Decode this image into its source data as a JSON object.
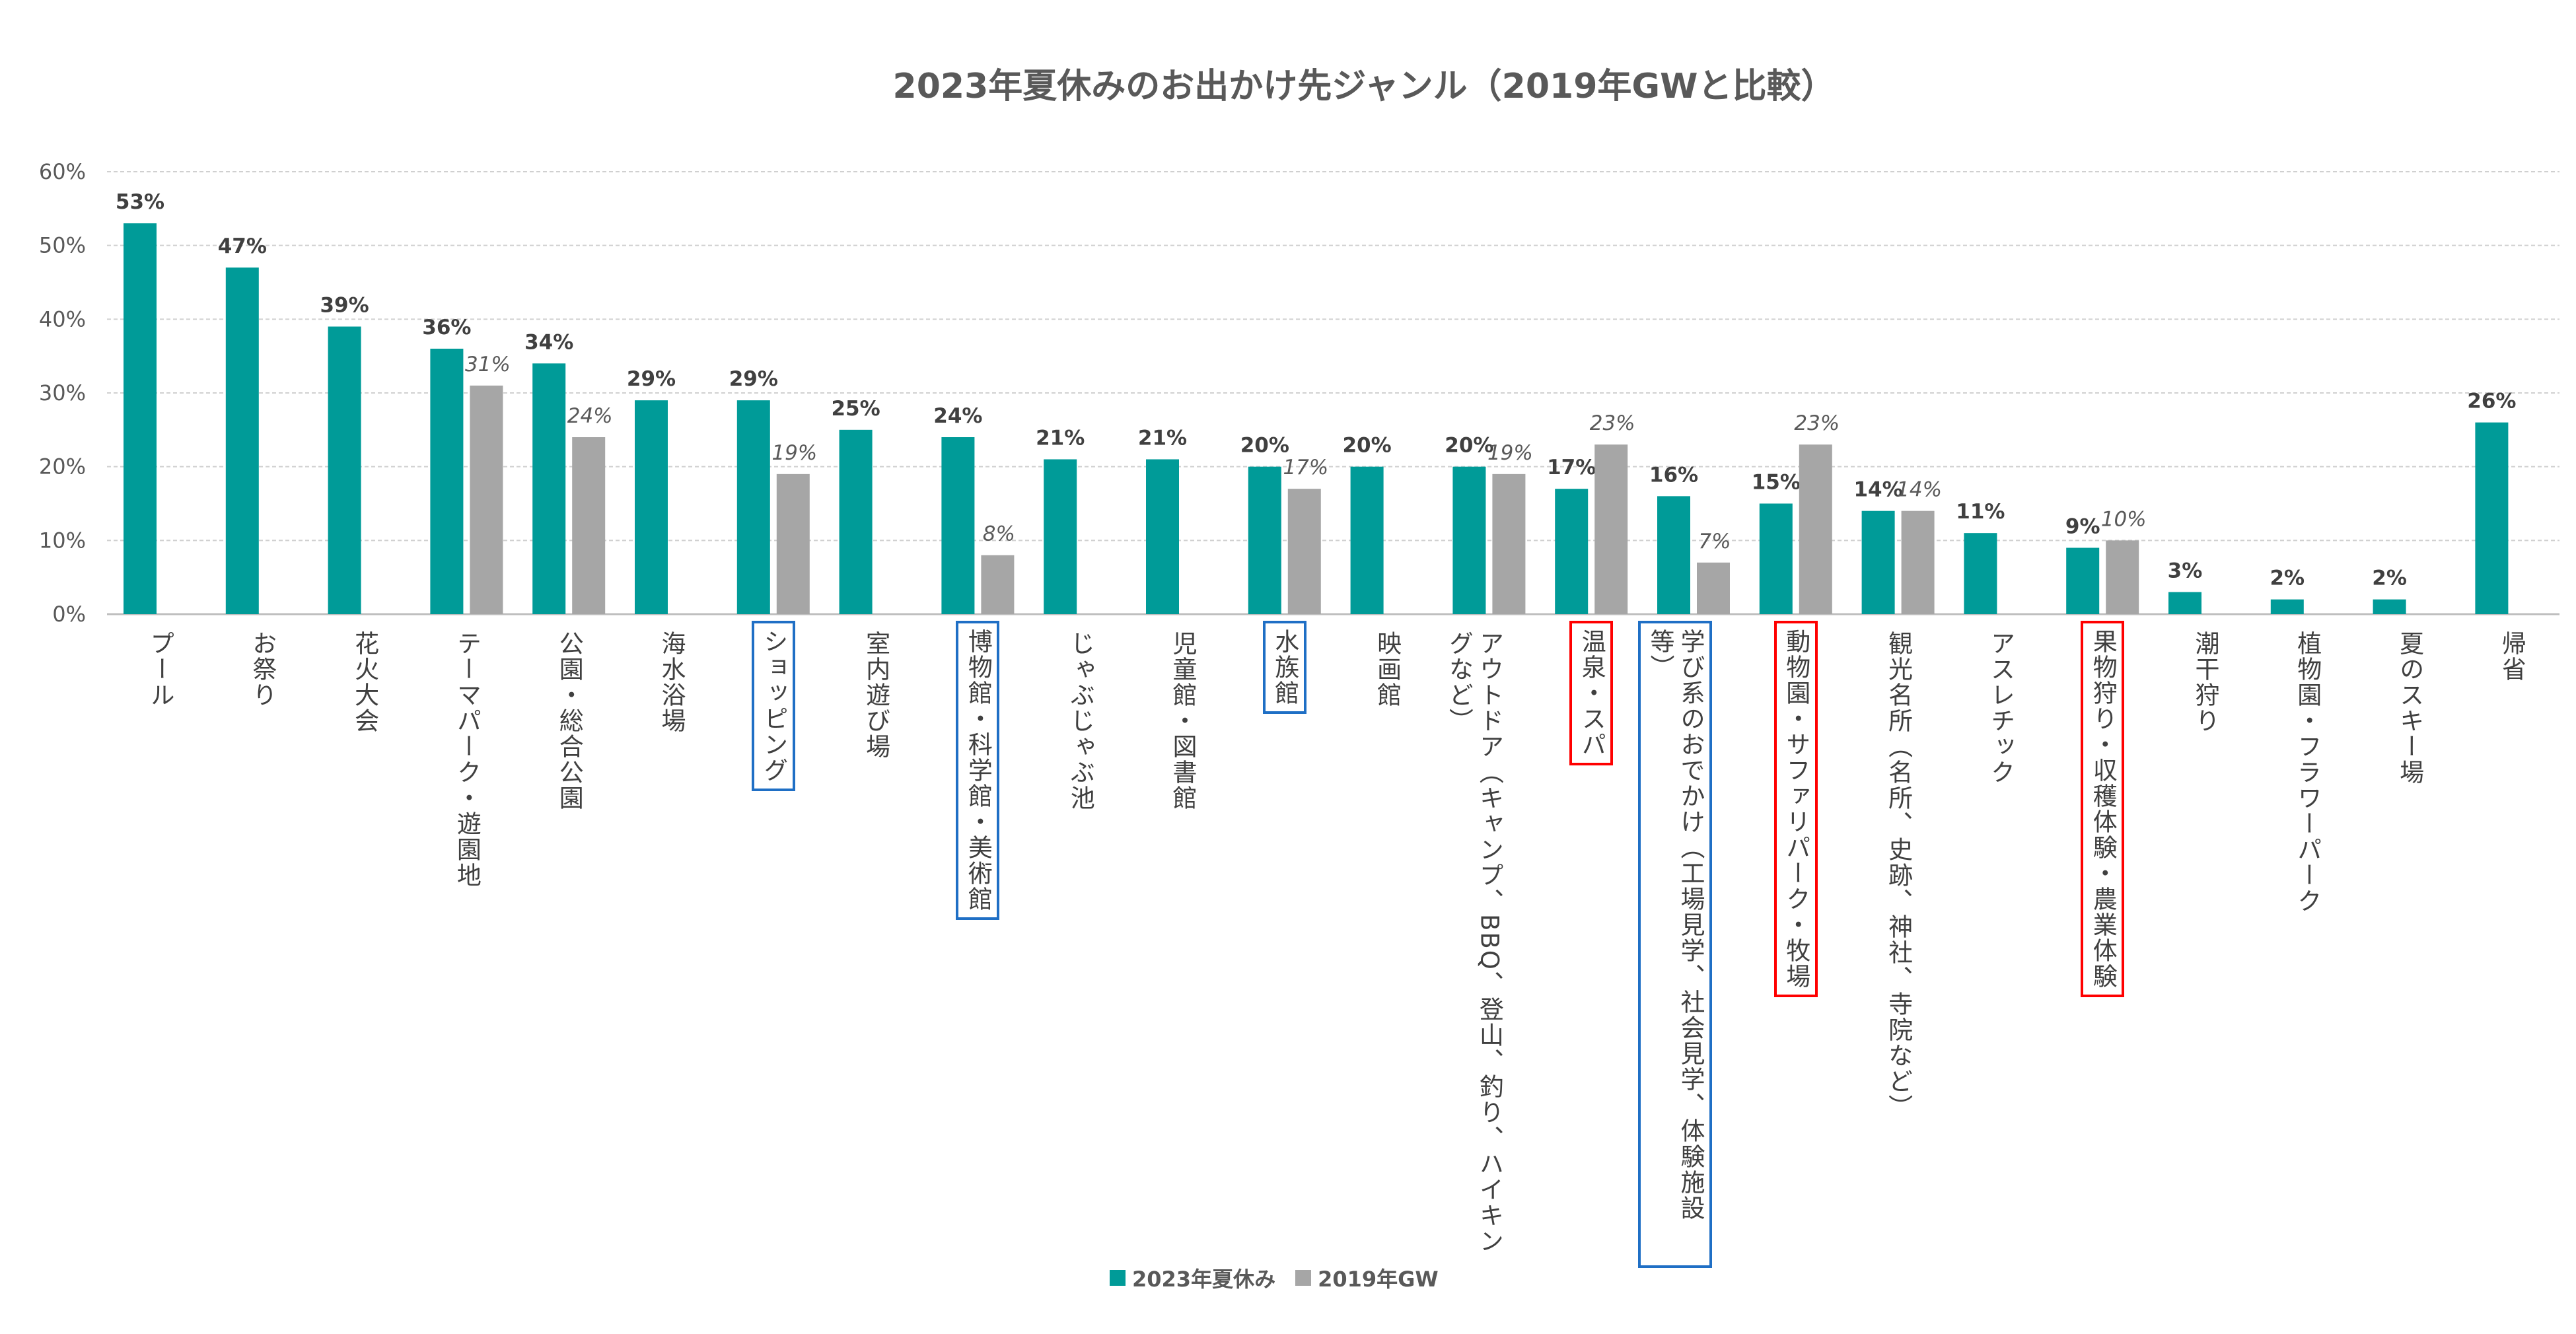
{
  "chart_data": {
    "type": "bar",
    "title": "2023年夏休みのお出かけ先ジャンル（2019年GWと比較）",
    "categories": [
      "プール",
      "お祭り",
      "花火大会",
      "テーマパーク・遊園地",
      "公園・総合公園",
      "海水浴場",
      "ショッピング",
      "室内遊び場",
      "博物館・科学館・美術館",
      "じゃぶじゃぶ池",
      "児童館・図書館",
      "水族館",
      "映画館",
      "アウトドア（キャンプ、BBQ、登山、釣り、ハイキングなど）",
      "温泉・スパ",
      "学び系のおでかけ（工場見学、社会見学、体験施設等）",
      "動物園・サファリパーク・牧場",
      "観光名所（名所、史跡、神社、寺院など）",
      "アスレチック",
      "果物狩り・収穫体験・農業体験",
      "潮干狩り",
      "植物園・フラワーパーク",
      "夏のスキー場",
      "帰省"
    ],
    "series": [
      {
        "name": "2023年夏休み",
        "color": "#009B98",
        "values": [
          53,
          47,
          39,
          36,
          34,
          29,
          29,
          25,
          24,
          21,
          21,
          20,
          20,
          20,
          17,
          16,
          15,
          14,
          11,
          9,
          3,
          2,
          2,
          26
        ]
      },
      {
        "name": "2019年GW",
        "color": "#A6A6A6",
        "values": [
          null,
          null,
          null,
          31,
          24,
          null,
          19,
          null,
          8,
          null,
          null,
          17,
          null,
          19,
          23,
          7,
          23,
          14,
          null,
          10,
          null,
          null,
          null,
          null
        ]
      }
    ],
    "ylim": [
      0,
      60
    ],
    "yticks": [
      "0%",
      "10%",
      "20%",
      "30%",
      "40%",
      "50%",
      "60%"
    ],
    "grid": true,
    "legend_position": "bottom",
    "highlight_boxes": {
      "blue": [
        "ショッピング",
        "博物館・科学館・美術館",
        "水族館",
        "学び系のおでかけ（工場見学、社会見学、体験施設等）"
      ],
      "red": [
        "温泉・スパ",
        "動物園・サファリパーク・牧場",
        "果物狩り・収穫体験・農業体験"
      ]
    },
    "box_colors": {
      "blue": "#1F6FC5",
      "red": "#FF0000"
    }
  }
}
